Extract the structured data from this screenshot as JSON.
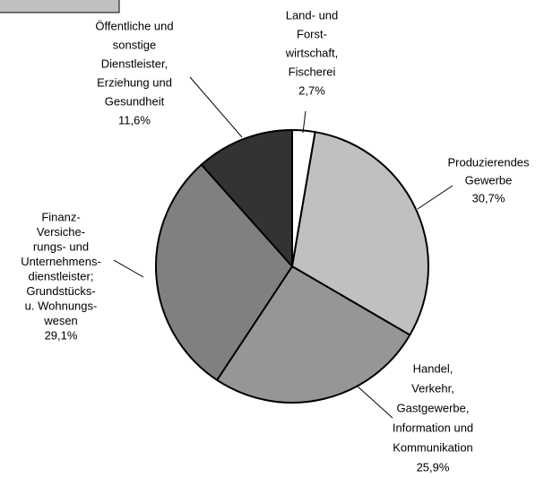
{
  "chart_data": {
    "type": "pie",
    "categories": [
      [
        "Land- und",
        "Forst-",
        "wirtschaft,",
        "Fischerei"
      ],
      [
        "Produzierendes",
        "Gewerbe"
      ],
      [
        "Handel,",
        "Verkehr,",
        "Gastgewerbe,",
        "Information und",
        "Kommunikation"
      ],
      [
        "Finanz-",
        "Versiche-",
        "rungs- und",
        "Unternehmens-",
        "dienstleister;",
        "Grundstücks-",
        "u. Wohnungs-",
        "wesen"
      ],
      [
        "Öffentliche und",
        "sonstige",
        "Dienstleister,",
        "Erziehung und",
        "Gesundheit"
      ]
    ],
    "values": [
      2.7,
      30.7,
      25.9,
      29.1,
      11.6
    ],
    "value_labels": [
      "2,7%",
      "30,7%",
      "25,9%",
      "29,1%",
      "11,6%"
    ],
    "colors": [
      "#ffffff",
      "#c0c0c0",
      "#969696",
      "#808080",
      "#333333"
    ]
  }
}
